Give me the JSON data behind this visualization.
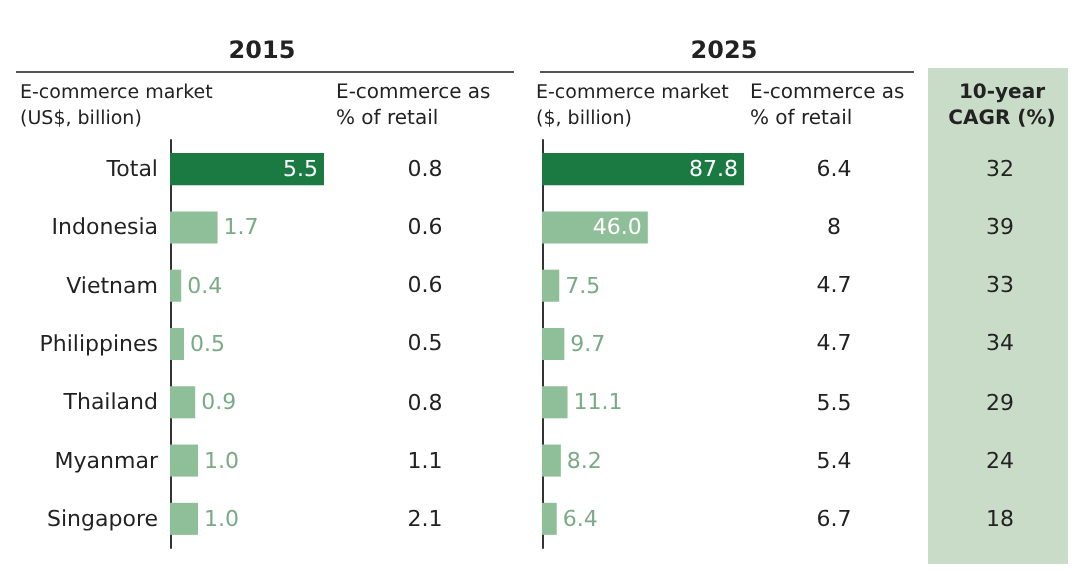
{
  "chart_data": [
    {
      "type": "bar",
      "orientation": "horizontal",
      "title": "2015",
      "xlabel": "E-commerce market (US$, billion)",
      "categories": [
        "Total",
        "Indonesia",
        "Vietnam",
        "Philippines",
        "Thailand",
        "Myanmar",
        "Singapore"
      ],
      "values": [
        5.5,
        1.7,
        0.4,
        0.5,
        0.9,
        1.0,
        1.0
      ],
      "colors": [
        "#1b7a42",
        "#8fbf98",
        "#8fbf98",
        "#8fbf98",
        "#8fbf98",
        "#8fbf98",
        "#8fbf98"
      ],
      "value_labels": [
        "5.5",
        "1.7",
        "0.4",
        "0.5",
        "0.9",
        "1.0",
        "1.0"
      ]
    },
    {
      "type": "other",
      "title": "E-commerce as % of retail",
      "values": [
        0.8,
        0.6,
        0.6,
        0.5,
        0.8,
        1.1,
        2.1
      ],
      "data_labels": true
    },
    {
      "type": "bar",
      "orientation": "horizontal",
      "xlabel": "E-commerce market ($, billion)",
      "title": "2025",
      "categories": [
        null,
        null,
        null,
        null,
        null,
        null,
        null
      ],
      "values": [
        87.8,
        46.0,
        7.5,
        9.7,
        11.1,
        8.2,
        6.4
      ],
      "colors": [
        "#1b7a42",
        "#8fbf98",
        "#8fbf98",
        "#8fbf98",
        "#8fbf98",
        "#8fbf98",
        "#8fbf98"
      ],
      "value_labels": [
        "87.8",
        "46.0",
        "7.5",
        "9.7",
        "11.1",
        "8.2",
        "6.4"
      ]
    },
    {
      "type": "other",
      "title": "E-commerce as % of retail",
      "values": [
        6.4,
        8,
        4.7,
        4.7,
        5.5,
        5.4,
        6.7
      ],
      "data_labels": true
    },
    {
      "type": "other",
      "title": "10-year CAGR (%)",
      "values": [
        32,
        39,
        33,
        34,
        29,
        24,
        18
      ],
      "data_labels": true,
      "color": "#c9dcc8"
    }
  ]
}
